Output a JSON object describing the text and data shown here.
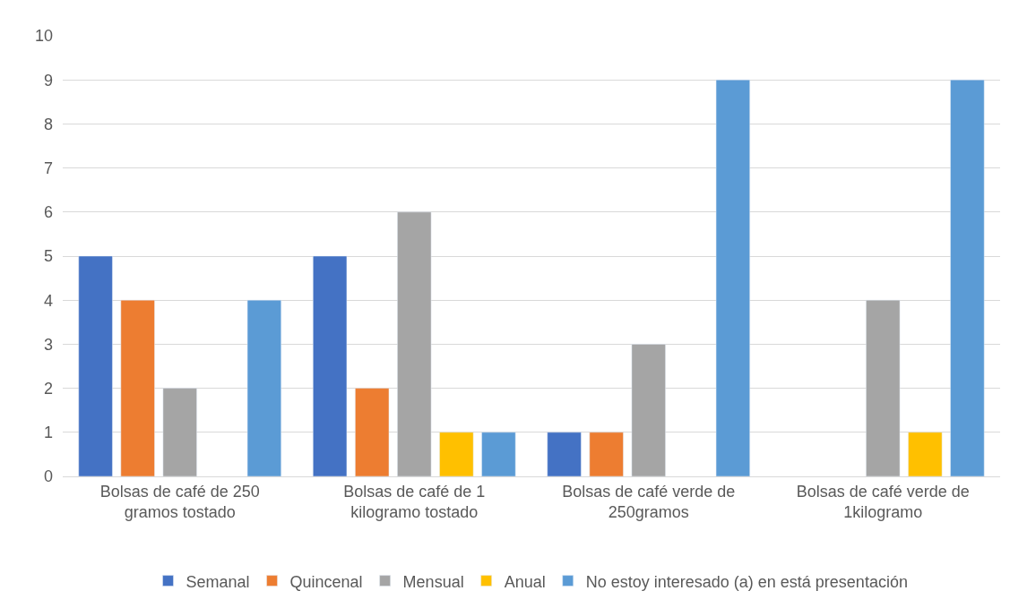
{
  "chart_data": {
    "type": "bar",
    "categories": [
      "Bolsas de café de 250 gramos tostado",
      "Bolsas de café de 1 kilogramo tostado",
      "Bolsas de café verde de 250gramos",
      "Bolsas de café verde de 1kilogramo"
    ],
    "series": [
      {
        "name": "Semanal",
        "color": "#4472c4",
        "values": [
          5,
          5,
          1,
          null
        ]
      },
      {
        "name": "Quincenal",
        "color": "#ed7d31",
        "values": [
          4,
          2,
          1,
          null
        ]
      },
      {
        "name": "Mensual",
        "color": "#a5a5a5",
        "values": [
          2,
          6,
          3,
          4
        ]
      },
      {
        "name": "Anual",
        "color": "#ffc000",
        "values": [
          null,
          1,
          null,
          1
        ]
      },
      {
        "name": "No estoy interesado (a) en está presentación",
        "color": "#5b9bd5",
        "values": [
          4,
          1,
          9,
          9
        ]
      }
    ],
    "ylim": [
      0,
      10
    ],
    "yticks": [
      0,
      1,
      2,
      3,
      4,
      5,
      6,
      7,
      8,
      9,
      10
    ],
    "grid": "y",
    "legend": "bottom"
  }
}
